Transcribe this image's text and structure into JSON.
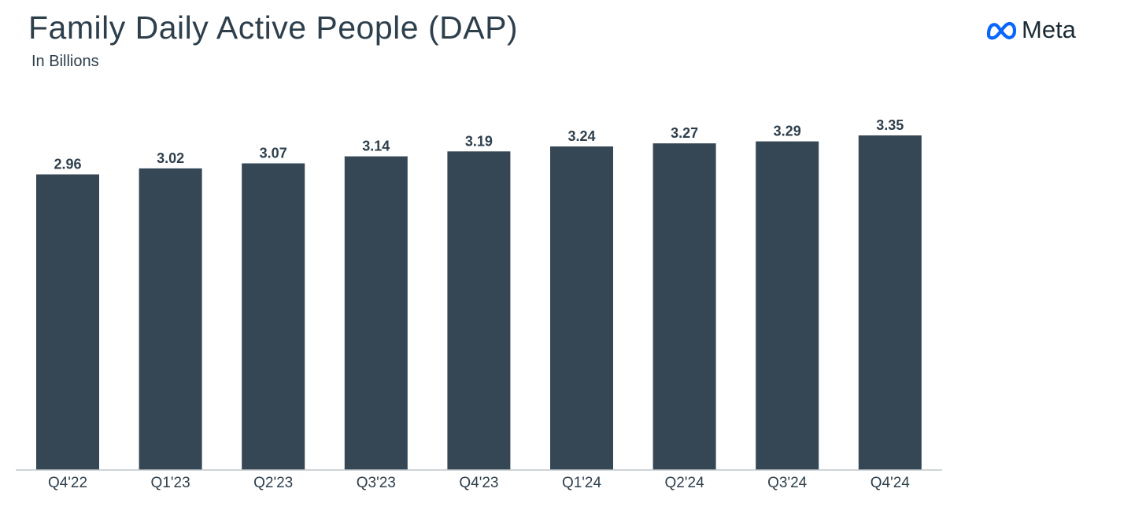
{
  "header": {
    "title": "Family Daily Active People (DAP)",
    "subtitle": "In Billions"
  },
  "logo": {
    "text": "Meta",
    "mark_icon": "meta-infinity-icon",
    "mark_color": "#0866ff"
  },
  "colors": {
    "bar": "#354654",
    "text": "#2e3f4c"
  },
  "chart_data": {
    "type": "bar",
    "title": "Family Daily Active People (DAP)",
    "subtitle": "In Billions",
    "xlabel": "",
    "ylabel": "",
    "categories": [
      "Q4'22",
      "Q1'23",
      "Q2'23",
      "Q3'23",
      "Q4'23",
      "Q1'24",
      "Q2'24",
      "Q3'24",
      "Q4'24"
    ],
    "values": [
      2.96,
      3.02,
      3.07,
      3.14,
      3.19,
      3.24,
      3.27,
      3.29,
      3.35
    ],
    "value_labels": [
      "2.96",
      "3.02",
      "3.07",
      "3.14",
      "3.19",
      "3.24",
      "3.27",
      "3.29",
      "3.35"
    ],
    "ylim": [
      0,
      3.35
    ],
    "grid": false,
    "legend": "none",
    "data_labels": "above-bars"
  }
}
